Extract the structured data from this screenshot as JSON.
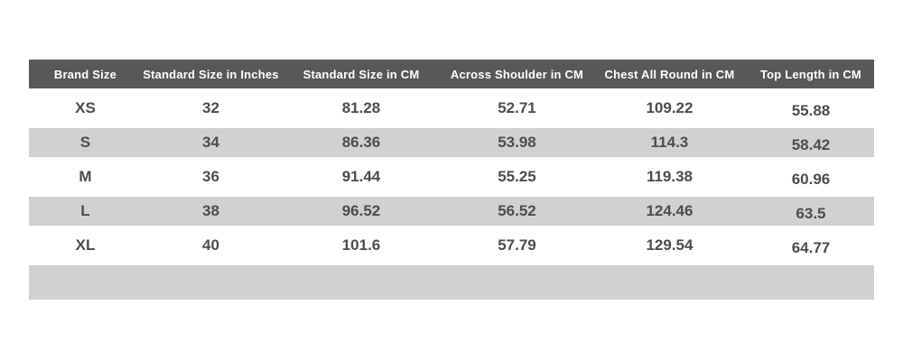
{
  "colors": {
    "header_bg": "#58585a",
    "header_text": "#ffffff",
    "stripe_bg": "#d1d1d1",
    "row_bg": "#ffffff",
    "cell_text": "#4d4d4d",
    "page_bg": "#ffffff"
  },
  "table": {
    "name": "garment-size-chart",
    "columns": [
      {
        "label": "Brand Size",
        "width_pct": 13.35
      },
      {
        "label": "Standard Size in Inches",
        "width_pct": 16.35
      },
      {
        "label": "Standard Size in CM",
        "width_pct": 19.23
      },
      {
        "label": "Across Shoulder in CM",
        "width_pct": 17.63
      },
      {
        "label": "Chest All Round in CM",
        "width_pct": 18.48
      },
      {
        "label": "Top Length in CM",
        "width_pct": 14.96
      }
    ],
    "rows": [
      {
        "cells": [
          "XS",
          "32",
          "81.28",
          "52.71",
          "109.22",
          "55.88"
        ],
        "shaded": false
      },
      {
        "cells": [
          "S",
          "34",
          "86.36",
          "53.98",
          "114.3",
          "58.42"
        ],
        "shaded": true
      },
      {
        "cells": [
          "M",
          "36",
          "91.44",
          "55.25",
          "119.38",
          "60.96"
        ],
        "shaded": false
      },
      {
        "cells": [
          "L",
          "38",
          "96.52",
          "56.52",
          "124.46",
          "63.5"
        ],
        "shaded": true
      },
      {
        "cells": [
          "XL",
          "40",
          "101.6",
          "57.79",
          "129.54",
          "64.77"
        ],
        "shaded": false
      }
    ],
    "footer_empty_row": true
  }
}
